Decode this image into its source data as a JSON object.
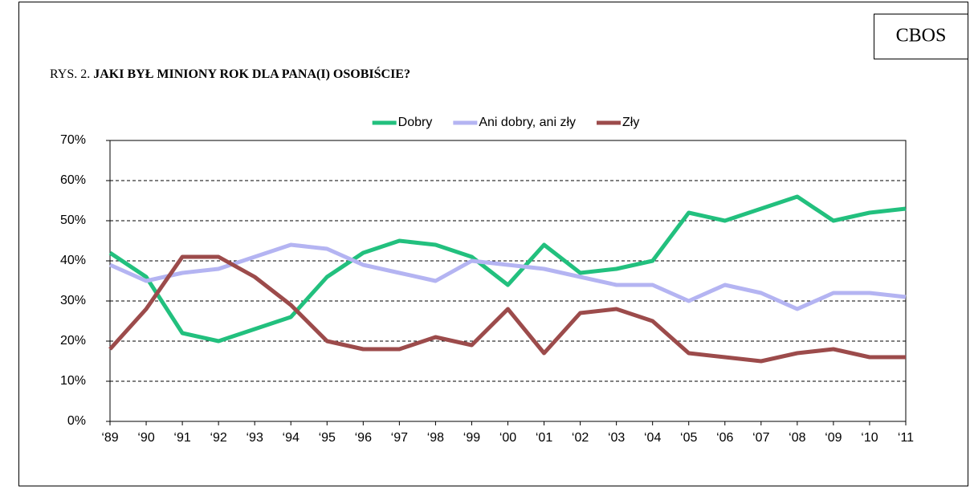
{
  "chart_data": {
    "type": "line",
    "source": "CBOS",
    "title_prefix": "RYS. 2.",
    "title": "JAKI BYŁ MINIONY ROK DLA PANA(I) OSOBIŚCIE?",
    "categories": [
      "‘89",
      "‘90",
      "‘91",
      "‘92",
      "‘93",
      "‘94",
      "‘95",
      "‘96",
      "‘97",
      "‘98",
      "‘99",
      "‘00",
      "‘01",
      "‘02",
      "‘03",
      "‘04",
      "‘05",
      "‘06",
      "‘07",
      "‘08",
      "‘09",
      "‘10",
      "‘11"
    ],
    "series": [
      {
        "name": "Dobry",
        "color": "#22c07e",
        "values": [
          42,
          36,
          22,
          20,
          23,
          26,
          36,
          42,
          45,
          44,
          41,
          34,
          44,
          37,
          38,
          40,
          52,
          50,
          53,
          56,
          50,
          52,
          53
        ]
      },
      {
        "name": "Ani dobry, ani zły",
        "color": "#b4b4f2",
        "values": [
          39,
          35,
          37,
          38,
          41,
          44,
          43,
          39,
          37,
          35,
          40,
          39,
          38,
          36,
          34,
          34,
          30,
          34,
          32,
          28,
          32,
          32,
          31
        ]
      },
      {
        "name": "Zły",
        "color": "#9c4b4b",
        "values": [
          18,
          28,
          41,
          41,
          36,
          29,
          20,
          18,
          18,
          21,
          19,
          28,
          17,
          27,
          28,
          25,
          17,
          16,
          15,
          17,
          18,
          16,
          16
        ]
      }
    ],
    "ylim": [
      0,
      70
    ],
    "yticks": [
      {
        "value": 0,
        "label": "0%"
      },
      {
        "value": 10,
        "label": "10%"
      },
      {
        "value": 20,
        "label": "20%"
      },
      {
        "value": 30,
        "label": "30%"
      },
      {
        "value": 40,
        "label": "40%"
      },
      {
        "value": 50,
        "label": "50%"
      },
      {
        "value": 60,
        "label": "60%"
      },
      {
        "value": 70,
        "label": "70%"
      }
    ],
    "grid": true,
    "legend": "top"
  }
}
